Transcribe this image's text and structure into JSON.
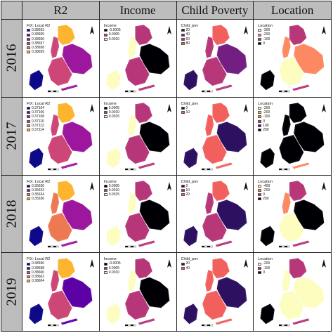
{
  "columns": [
    "R2",
    "Income",
    "Child Poverty",
    "Location"
  ],
  "rows": [
    "2016",
    "2017",
    "2018",
    "2019"
  ],
  "panels": [
    [
      {
        "legend_title": "FIX: Local R2",
        "legend_items": [
          "0.38653",
          "0.38655",
          "0.38656",
          "0.38657",
          "0.38658",
          "0.38659"
        ],
        "palette": [
          "#0d0887",
          "#5c01a6",
          "#9c179e",
          "#cc4778",
          "#ed7953",
          "#fdb42f"
        ],
        "scheme": "r2"
      },
      {
        "legend_title": "Income",
        "legend_items": [
          "-0.0005",
          "0.0005",
          "0.0010"
        ],
        "palette": [
          "#000004",
          "#b63679",
          "#fcfdbf"
        ],
        "scheme": "income"
      },
      {
        "legend_title": "Child_pov",
        "legend_items": [
          "20",
          "40",
          "60",
          "80"
        ],
        "palette": [
          "#2d1160",
          "#721f81",
          "#b73779",
          "#f1605d"
        ],
        "scheme": "child"
      },
      {
        "legend_title": "Location",
        "legend_items": [
          "-300",
          "-200",
          "-100",
          "0"
        ],
        "palette": [
          "#fcfdbf",
          "#fc8961",
          "#b73779",
          "#000004"
        ],
        "scheme": "location"
      }
    ],
    [
      {
        "legend_title": "FIX: Local R2",
        "legend_items": [
          "0.37104",
          "0.37106",
          "0.37108",
          "0.37110",
          "0.37112",
          "0.37114"
        ],
        "palette": [
          "#0d0887",
          "#5c01a6",
          "#9c179e",
          "#cc4778",
          "#ed7953",
          "#fdb42f"
        ],
        "scheme": "r2"
      },
      {
        "legend_title": "Income",
        "legend_items": [
          "0.0005",
          "0.0010",
          "0.0015"
        ],
        "palette": [
          "#000004",
          "#b63679",
          "#fcfdbf"
        ],
        "scheme": "income"
      },
      {
        "legend_title": "Child_pov",
        "legend_items": [
          "0",
          "10"
        ],
        "palette": [
          "#2d1160",
          "#f1605d"
        ],
        "scheme": "child"
      },
      {
        "legend_title": "Location",
        "legend_items": [
          "-300",
          "-200",
          "-100",
          "0",
          "100",
          "200"
        ],
        "palette": [
          "#fcfdbf",
          "#fdc926",
          "#fc8961",
          "#b73779",
          "#51127c",
          "#000004"
        ],
        "scheme": "location_dark"
      }
    ],
    [
      {
        "legend_title": "FIX: Local R2",
        "legend_items": [
          "0.35630",
          "0.35632",
          "0.35634",
          "0.35636"
        ],
        "palette": [
          "#0d0887",
          "#9c179e",
          "#ed7953",
          "#fdb42f"
        ],
        "scheme": "r2"
      },
      {
        "legend_title": "Income",
        "legend_items": [
          "0.0005",
          "0.0010",
          "0.0015"
        ],
        "palette": [
          "#000004",
          "#b63679",
          "#fcfdbf"
        ],
        "scheme": "income"
      },
      {
        "legend_title": "Child_pov",
        "legend_items": [
          "0",
          "10",
          "20"
        ],
        "palette": [
          "#2d1160",
          "#b73779",
          "#f1605d"
        ],
        "scheme": "child"
      },
      {
        "legend_title": "Location",
        "legend_items": [
          "-400",
          "-200",
          "0",
          "200"
        ],
        "palette": [
          "#fcfdbf",
          "#fc8961",
          "#b73779",
          "#000004"
        ],
        "scheme": "location"
      }
    ],
    [
      {
        "legend_title": "FIX: Local R2",
        "legend_items": [
          "0.38596",
          "0.38598",
          "0.38600",
          "0.38602",
          "0.38604"
        ],
        "palette": [
          "#0d0887",
          "#5c01a6",
          "#cc4778",
          "#ed7953",
          "#fdb42f"
        ],
        "scheme": "r2"
      },
      {
        "legend_title": "Income",
        "legend_items": [
          "-0.0005",
          "0.0005",
          "0.0010"
        ],
        "palette": [
          "#000004",
          "#b63679",
          "#fcfdbf"
        ],
        "scheme": "income"
      },
      {
        "legend_title": "Child_pov",
        "legend_items": [
          "20",
          "40"
        ],
        "palette": [
          "#2d1160",
          "#f1605d"
        ],
        "scheme": "child"
      },
      {
        "legend_title": "Location",
        "legend_items": [
          "-200",
          "-100",
          "0"
        ],
        "palette": [
          "#fcfdbf",
          "#b73779",
          "#000004"
        ],
        "scheme": "location"
      }
    ]
  ]
}
